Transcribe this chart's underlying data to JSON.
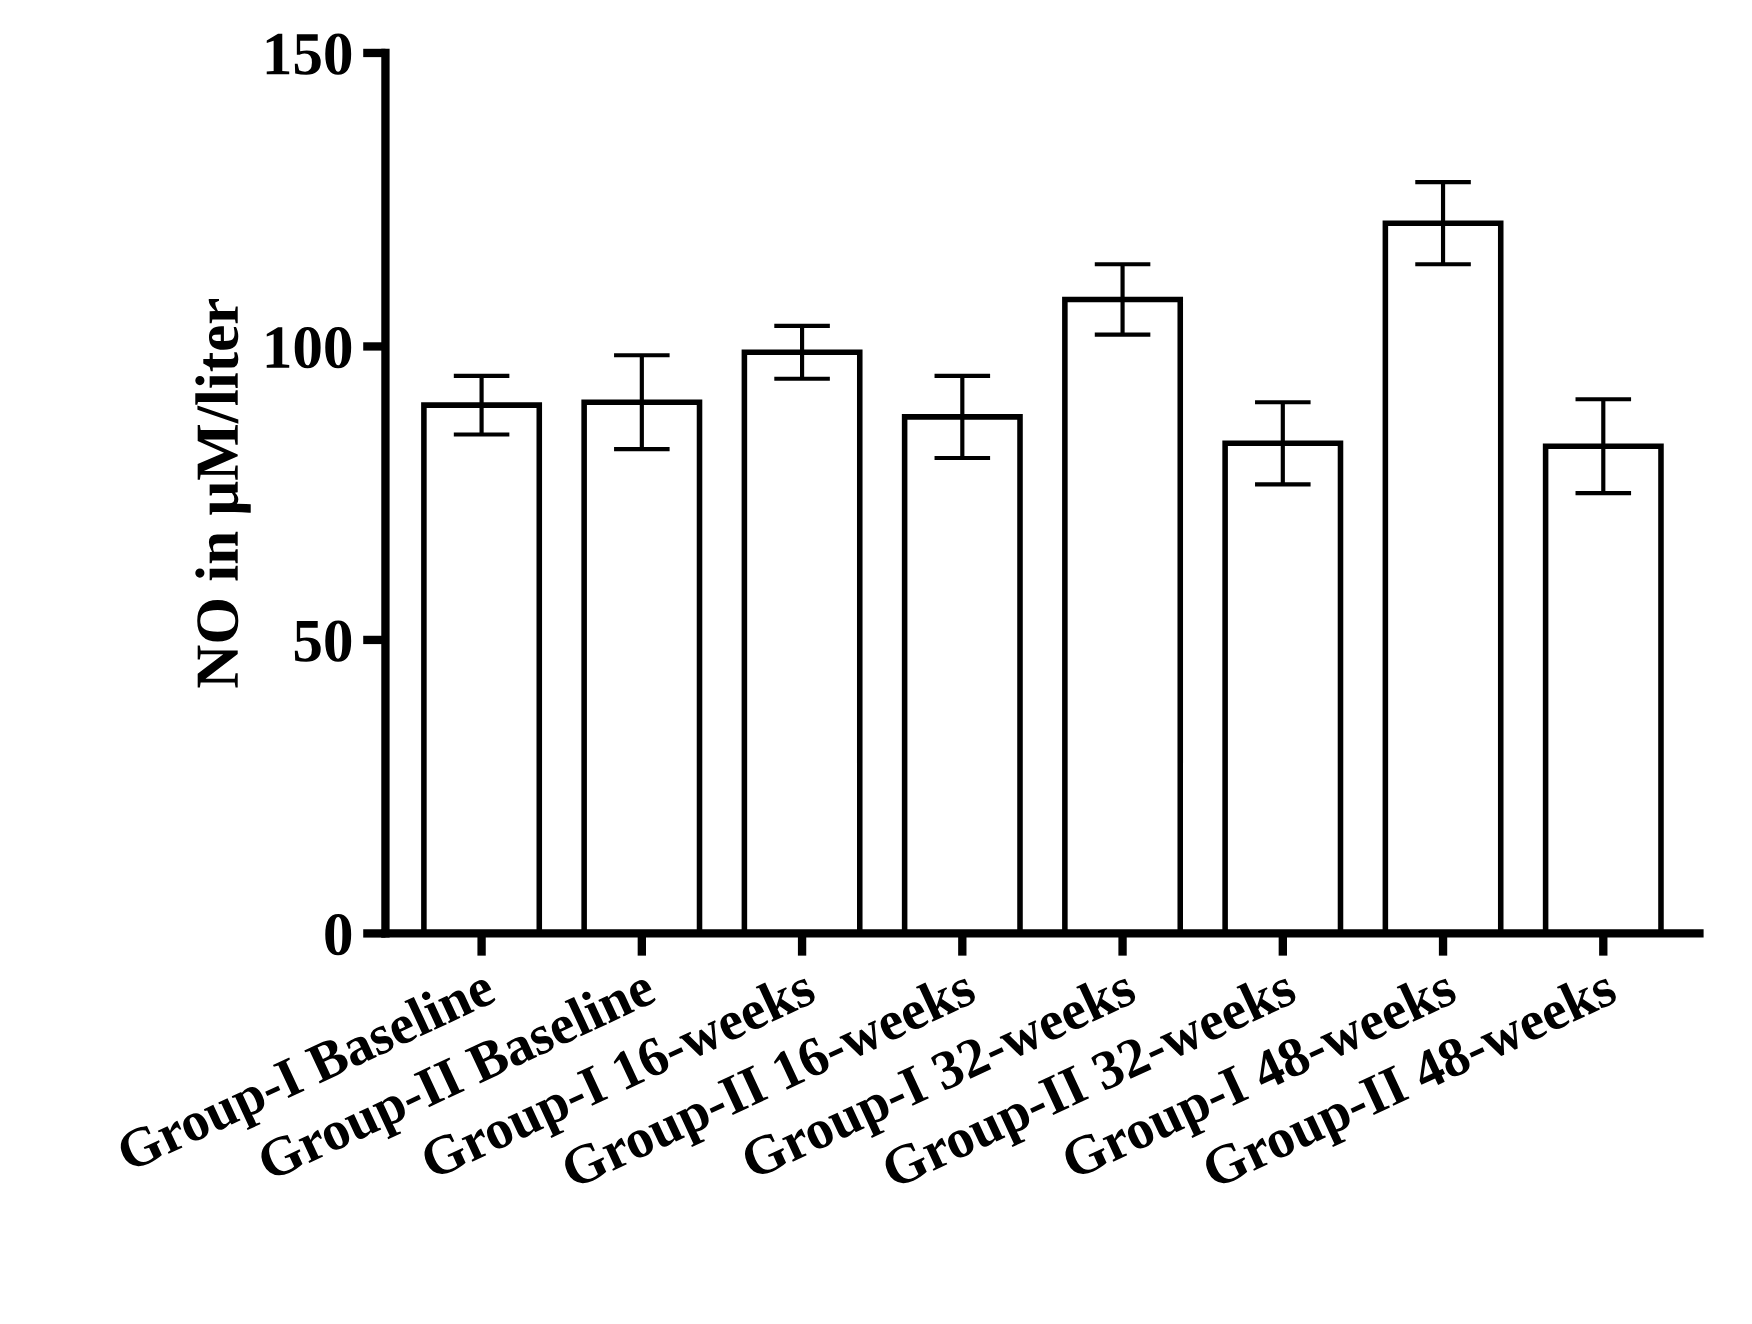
{
  "chart_data": {
    "type": "bar",
    "ylabel": "NO in μM/liter",
    "categories": [
      "Group-I Baseline",
      "Group-II Baseline",
      "Group-I 16-weeks",
      "Group-II 16-weeks",
      "Group-I 32-weeks",
      "Group-II 32-weeks",
      "Group-I 48-weeks",
      "Group-II 48-weeks"
    ],
    "values": [
      90,
      90.5,
      99,
      88,
      108,
      83.5,
      121,
      83
    ],
    "errors": [
      5,
      8,
      4.5,
      7,
      6,
      7,
      7,
      8
    ],
    "colors": [
      "#ffffff",
      "#ffffff",
      "#ffffff",
      "#ffffff",
      "#ffffff",
      "#ffffff",
      "#ffffff",
      "#ffffff"
    ],
    "ylim": [
      0,
      150
    ],
    "yticks": [
      0,
      50,
      100,
      150
    ],
    "grid": false,
    "legend": false
  }
}
